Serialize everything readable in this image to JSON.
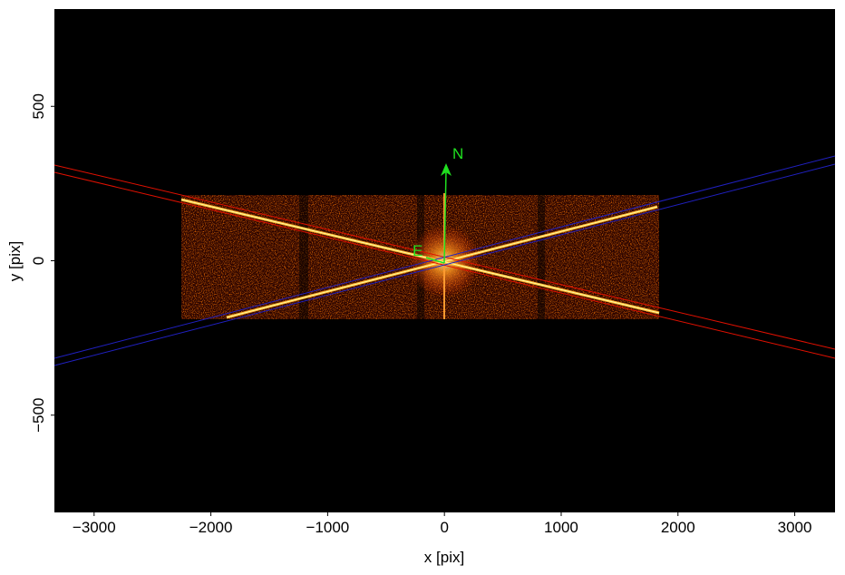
{
  "chart_data": {
    "type": "image",
    "xlabel": "x [pix]",
    "ylabel": "y [pix]",
    "xlim": [
      -3340,
      3345
    ],
    "ylim": [
      -815,
      815
    ],
    "xticks": [
      {
        "value": -3000,
        "label": "−3000"
      },
      {
        "value": -2000,
        "label": "−2000"
      },
      {
        "value": -1000,
        "label": "−1000"
      },
      0,
      1000,
      2000,
      3000
    ],
    "yticks": [
      {
        "value": -500,
        "label": "−500"
      },
      0,
      500
    ],
    "annotations": [
      "N",
      "E"
    ]
  }
}
